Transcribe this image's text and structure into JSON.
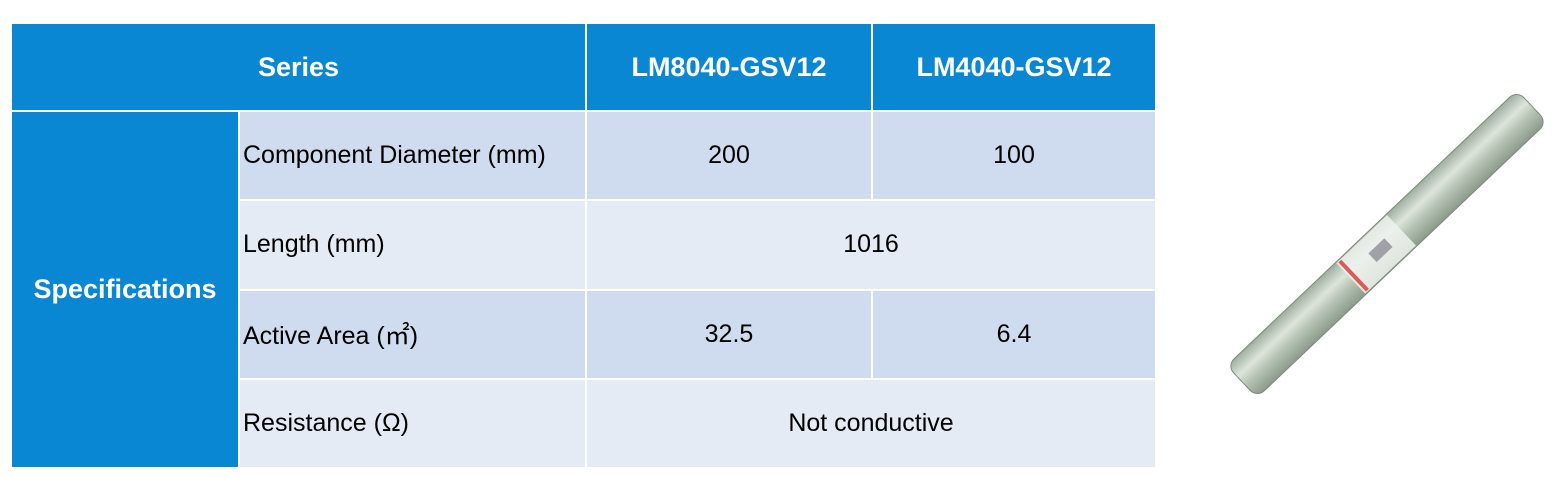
{
  "table": {
    "header": [
      "Series",
      "LM8040-GSV12",
      "LM4040-GSV12"
    ],
    "group": "Specifications",
    "rows": [
      [
        "Component Diameter (mm)",
        "200",
        "100"
      ],
      [
        "Length (mm)",
        "1016"
      ],
      [
        "Active Area (㎡)",
        "32.5",
        "6.4"
      ],
      [
        "Resistance (Ω)",
        "Not conductive"
      ]
    ]
  }
}
